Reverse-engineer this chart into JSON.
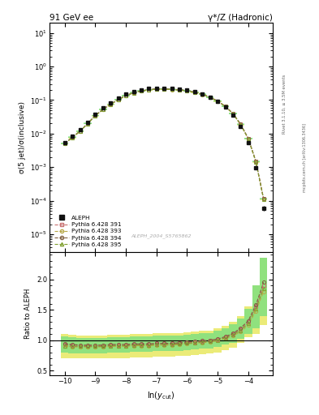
{
  "title_left": "91 GeV ee",
  "title_right": "γ*/Z (Hadronic)",
  "ylabel_main": "σ(5 jet)/σ(inclusive)",
  "ylabel_ratio": "Ratio to ALEPH",
  "xlabel": "ln(y_{cut})",
  "watermark": "ALEPH_2004_S5765862",
  "right_label": "Rivet 3.1.10, ≥ 3.5M events",
  "right_label2": "mcplots.cern.ch [arXiv:1306.3436]",
  "xlim": [
    -10.5,
    -3.2
  ],
  "ylim_main": [
    3e-06,
    20.0
  ],
  "ylim_ratio": [
    0.42,
    2.45
  ],
  "ratio_yticks": [
    0.5,
    1.0,
    1.5,
    2.0
  ],
  "x_data": [
    -10.0,
    -9.75,
    -9.5,
    -9.25,
    -9.0,
    -8.75,
    -8.5,
    -8.25,
    -8.0,
    -7.75,
    -7.5,
    -7.25,
    -7.0,
    -6.75,
    -6.5,
    -6.25,
    -6.0,
    -5.75,
    -5.5,
    -5.25,
    -5.0,
    -4.75,
    -4.5,
    -4.25,
    -4.0,
    -3.75,
    -3.5
  ],
  "aleph_y": [
    0.0055,
    0.0085,
    0.013,
    0.022,
    0.038,
    0.058,
    0.082,
    0.112,
    0.148,
    0.178,
    0.202,
    0.218,
    0.228,
    0.228,
    0.222,
    0.212,
    0.197,
    0.177,
    0.152,
    0.122,
    0.092,
    0.062,
    0.036,
    0.016,
    0.0055,
    0.00095,
    6e-05
  ],
  "aleph_yerr_lo": [
    0.0003,
    0.0004,
    0.0006,
    0.001,
    0.001,
    0.002,
    0.002,
    0.003,
    0.003,
    0.004,
    0.004,
    0.004,
    0.004,
    0.004,
    0.004,
    0.004,
    0.004,
    0.003,
    0.003,
    0.003,
    0.002,
    0.002,
    0.001,
    0.001,
    0.0003,
    0.0001,
    1e-05
  ],
  "aleph_yerr_hi": [
    0.0003,
    0.0004,
    0.0006,
    0.001,
    0.001,
    0.002,
    0.002,
    0.003,
    0.003,
    0.004,
    0.004,
    0.004,
    0.004,
    0.004,
    0.004,
    0.004,
    0.004,
    0.003,
    0.003,
    0.003,
    0.002,
    0.002,
    0.001,
    0.001,
    0.0003,
    0.0001,
    1e-05
  ],
  "pythia391_ratio": [
    0.93,
    0.92,
    0.91,
    0.91,
    0.91,
    0.91,
    0.92,
    0.92,
    0.92,
    0.93,
    0.93,
    0.93,
    0.94,
    0.94,
    0.94,
    0.95,
    0.96,
    0.97,
    0.98,
    0.99,
    1.01,
    1.05,
    1.1,
    1.18,
    1.3,
    1.55,
    1.9
  ],
  "pythia393_ratio": [
    0.9,
    0.89,
    0.89,
    0.89,
    0.89,
    0.89,
    0.9,
    0.9,
    0.9,
    0.91,
    0.91,
    0.91,
    0.92,
    0.92,
    0.92,
    0.93,
    0.94,
    0.95,
    0.96,
    0.97,
    0.99,
    1.03,
    1.07,
    1.14,
    1.25,
    1.48,
    1.8
  ],
  "pythia394_ratio": [
    0.94,
    0.93,
    0.92,
    0.92,
    0.92,
    0.92,
    0.93,
    0.93,
    0.93,
    0.94,
    0.94,
    0.94,
    0.95,
    0.95,
    0.95,
    0.96,
    0.97,
    0.98,
    0.99,
    1.0,
    1.02,
    1.06,
    1.11,
    1.2,
    1.32,
    1.58,
    1.95
  ],
  "pythia395_ratio": [
    0.91,
    0.9,
    0.9,
    0.9,
    0.9,
    0.9,
    0.91,
    0.91,
    0.91,
    0.92,
    0.92,
    0.92,
    0.93,
    0.93,
    0.93,
    0.94,
    0.95,
    0.96,
    0.97,
    0.98,
    1.0,
    1.04,
    1.09,
    1.16,
    1.28,
    1.52,
    1.85
  ],
  "band391_lo": [
    0.8,
    0.79,
    0.79,
    0.79,
    0.79,
    0.79,
    0.8,
    0.8,
    0.8,
    0.81,
    0.81,
    0.81,
    0.82,
    0.82,
    0.82,
    0.83,
    0.84,
    0.85,
    0.86,
    0.87,
    0.89,
    0.93,
    0.96,
    1.02,
    1.1,
    1.2,
    1.4
  ],
  "band391_hi": [
    1.06,
    1.05,
    1.04,
    1.04,
    1.04,
    1.04,
    1.05,
    1.05,
    1.05,
    1.06,
    1.06,
    1.06,
    1.07,
    1.07,
    1.07,
    1.08,
    1.09,
    1.1,
    1.11,
    1.12,
    1.15,
    1.2,
    1.26,
    1.36,
    1.52,
    1.9,
    2.35
  ],
  "band393_lo": [
    0.7,
    0.7,
    0.7,
    0.7,
    0.7,
    0.7,
    0.71,
    0.71,
    0.71,
    0.72,
    0.72,
    0.72,
    0.73,
    0.73,
    0.73,
    0.74,
    0.75,
    0.76,
    0.77,
    0.78,
    0.8,
    0.84,
    0.88,
    0.95,
    1.05,
    1.1,
    1.25
  ],
  "band393_hi": [
    1.1,
    1.09,
    1.08,
    1.08,
    1.08,
    1.08,
    1.09,
    1.09,
    1.09,
    1.1,
    1.1,
    1.1,
    1.11,
    1.11,
    1.11,
    1.12,
    1.13,
    1.14,
    1.15,
    1.16,
    1.19,
    1.24,
    1.3,
    1.4,
    1.55,
    1.9,
    2.35
  ],
  "color_391": "#c87070",
  "color_393": "#b8a848",
  "color_394": "#806040",
  "color_395": "#80a030",
  "aleph_color": "#111111",
  "hline_color": "#000000",
  "band_yellow": "#e8e860",
  "band_green": "#80e080"
}
